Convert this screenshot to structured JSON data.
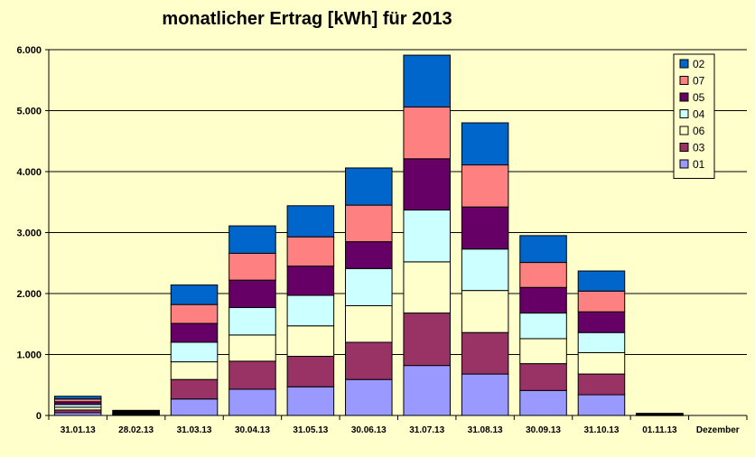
{
  "chart_data": {
    "type": "bar",
    "stacked": true,
    "title": "monatlicher Ertrag [kWh] für 2013",
    "xlabel": "",
    "ylabel": "",
    "ylim": [
      0,
      6000
    ],
    "yticks": [
      "0",
      "1.000",
      "2.000",
      "3.000",
      "4.000",
      "5.000",
      "6.000"
    ],
    "ytick_values": [
      0,
      1000,
      2000,
      3000,
      4000,
      5000,
      6000
    ],
    "grid": true,
    "legend_position": "top-right",
    "categories": [
      "31.01.13",
      "28.02.13",
      "31.03.13",
      "30.04.13",
      "31.05.13",
      "30.06.13",
      "31.07.13",
      "31.08.13",
      "30.09.13",
      "31.10.13",
      "01.11.13",
      "Dezember"
    ],
    "series": [
      {
        "name": "01",
        "color": "#9999FF",
        "values": [
          45,
          12,
          270,
          430,
          470,
          590,
          820,
          680,
          410,
          340,
          5,
          0
        ]
      },
      {
        "name": "03",
        "color": "#993366",
        "values": [
          45,
          12,
          320,
          460,
          500,
          610,
          860,
          680,
          440,
          340,
          5,
          0
        ]
      },
      {
        "name": "06",
        "color": "#FFFFCC",
        "values": [
          45,
          12,
          290,
          430,
          500,
          600,
          840,
          690,
          410,
          350,
          5,
          0
        ]
      },
      {
        "name": "04",
        "color": "#CCFFFF",
        "values": [
          45,
          12,
          320,
          450,
          500,
          610,
          850,
          680,
          420,
          330,
          5,
          0
        ]
      },
      {
        "name": "05",
        "color": "#660066",
        "values": [
          45,
          12,
          310,
          450,
          480,
          440,
          840,
          690,
          420,
          340,
          5,
          0
        ]
      },
      {
        "name": "07",
        "color": "#FF8080",
        "values": [
          45,
          12,
          310,
          440,
          480,
          600,
          850,
          690,
          410,
          340,
          5,
          0
        ]
      },
      {
        "name": "02",
        "color": "#0066CC",
        "values": [
          45,
          12,
          320,
          450,
          510,
          610,
          850,
          690,
          440,
          330,
          5,
          0
        ]
      }
    ],
    "legend_order": [
      "02",
      "07",
      "05",
      "04",
      "06",
      "03",
      "01"
    ]
  }
}
